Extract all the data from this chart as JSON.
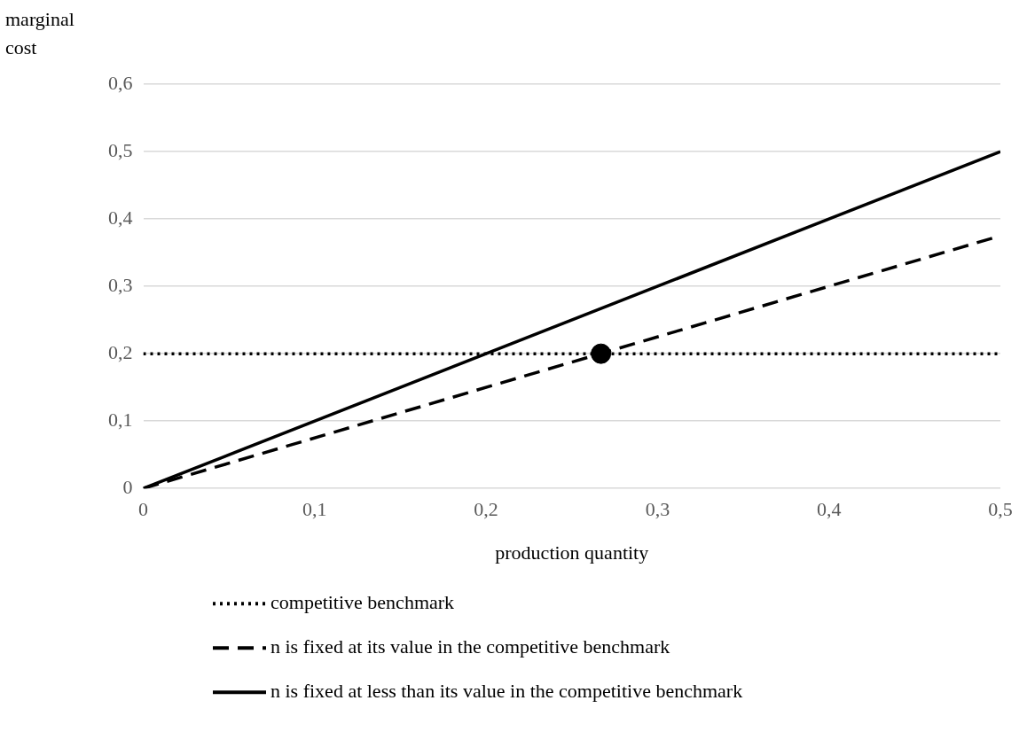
{
  "chart_data": {
    "type": "line",
    "xlabel": "production quantity",
    "ylabel": "marginal cost",
    "xlim": [
      0,
      0.5
    ],
    "xticks": [
      0,
      {
        "value": 0.1,
        "label": "0,1"
      },
      {
        "value": 0.2,
        "label": "0,2"
      },
      {
        "value": 0.3,
        "label": "0,3"
      },
      {
        "value": 0.4,
        "label": "0,4"
      },
      {
        "value": 0.5,
        "label": "0,5"
      }
    ],
    "ylim": [
      0,
      0.6
    ],
    "yticks": [
      0,
      {
        "value": 0.1,
        "label": "0,1"
      },
      {
        "value": 0.2,
        "label": "0,2"
      },
      {
        "value": 0.3,
        "label": "0,3"
      },
      {
        "value": 0.4,
        "label": "0,4"
      },
      {
        "value": 0.5,
        "label": "0,5"
      },
      {
        "value": 0.6,
        "label": "0,6"
      }
    ],
    "grid": "y",
    "legend": "bottom",
    "marker": "none",
    "series": [
      {
        "name": "competitive benchmark",
        "color": "#000000",
        "x": [
          0,
          0.5
        ],
        "values": [
          0.2,
          0.2
        ],
        "line_style": "dotted"
      },
      {
        "name": "n is fixed at its value in the competitive benchmark",
        "color": "#000000",
        "x": [
          0,
          0.5
        ],
        "values": [
          0,
          0.375
        ],
        "line_style": "dashed"
      },
      {
        "name": "n is fixed at less than its value in the competitive benchmark",
        "color": "#000000",
        "x": [
          0,
          0.5
        ],
        "values": [
          0,
          0.5
        ],
        "line_style": "solid"
      },
      {
        "type": "scatter",
        "color": "#000000",
        "x": [
          0.267
        ],
        "values": [
          0.2
        ],
        "marker": "circle"
      }
    ]
  }
}
